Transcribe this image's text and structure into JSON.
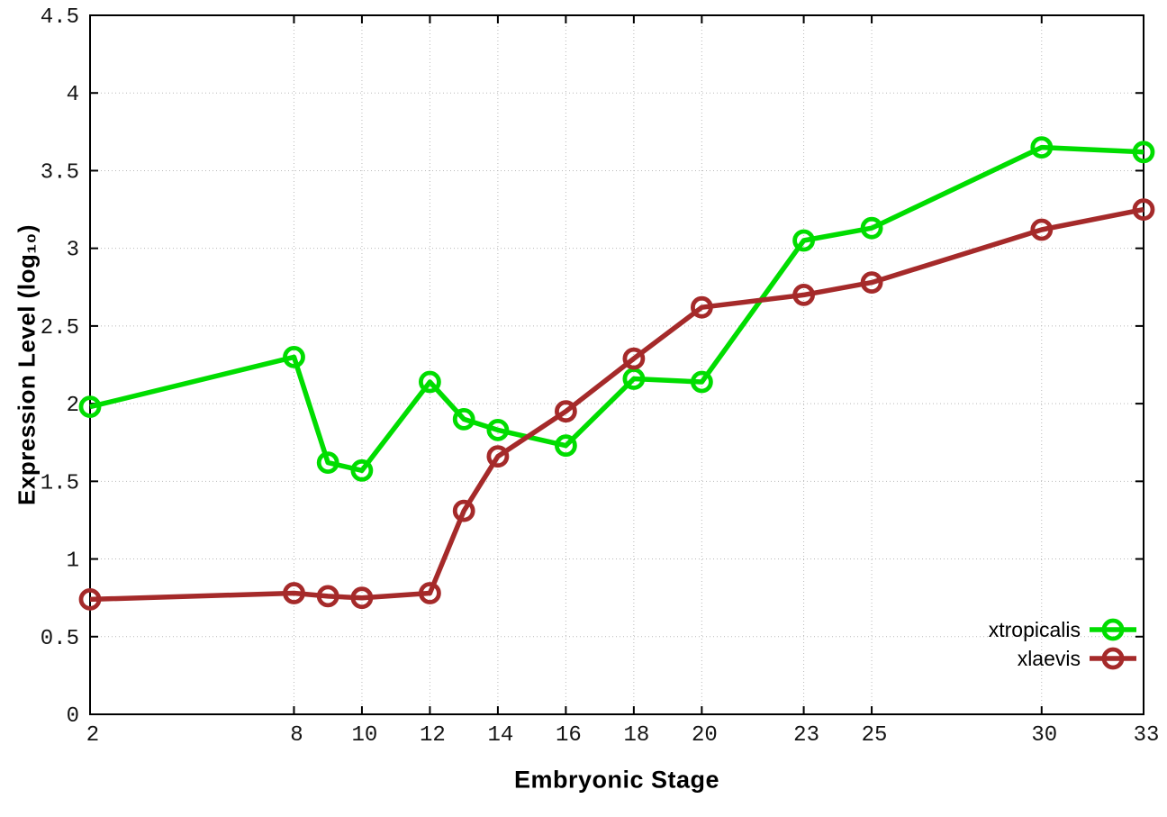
{
  "chart_data": {
    "type": "line",
    "title": "",
    "xlabel": "Embryonic Stage",
    "ylabel": "Expression Level (log₁₀)",
    "xlim": [
      2,
      33
    ],
    "ylim": [
      0,
      4.5
    ],
    "x_ticks": [
      2,
      8,
      10,
      12,
      14,
      16,
      18,
      20,
      23,
      25,
      30,
      33
    ],
    "y_ticks": [
      0,
      0.5,
      1,
      1.5,
      2,
      2.5,
      3,
      3.5,
      4,
      4.5
    ],
    "grid": true,
    "legend_position": "bottom-right-inside",
    "background": "#ffffff",
    "x": [
      2,
      8,
      9,
      10,
      12,
      13,
      14,
      16,
      18,
      20,
      23,
      25,
      30,
      33
    ],
    "series": [
      {
        "name": "xtropicalis",
        "color": "#00dd00",
        "marker": "open-circle",
        "values": [
          1.98,
          2.3,
          1.62,
          1.57,
          2.14,
          1.9,
          1.83,
          1.73,
          2.16,
          2.14,
          3.05,
          3.13,
          3.65,
          3.62
        ]
      },
      {
        "name": "xlaevis",
        "color": "#a52a2a",
        "marker": "open-circle",
        "values": [
          0.74,
          0.78,
          0.76,
          0.75,
          0.78,
          1.31,
          1.66,
          1.95,
          2.29,
          2.62,
          2.7,
          2.78,
          3.12,
          3.25
        ]
      }
    ]
  }
}
